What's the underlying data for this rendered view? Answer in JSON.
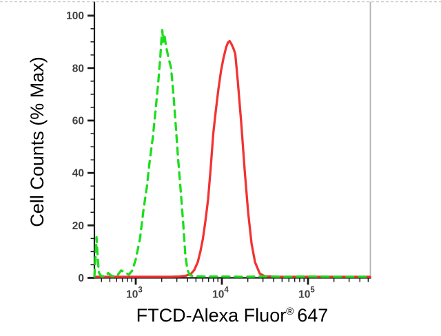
{
  "figure": {
    "background": "#ffffff",
    "x_axis_label": {
      "prefix": "FTCD-Alexa Fluor",
      "registered_mark": "®",
      "suffix": "647"
    },
    "y_axis_label": "Cell Counts (% Max)"
  },
  "chart_data": {
    "type": "line",
    "subtype": "flow-cytometry-histogram-overlay",
    "title": "",
    "xlabel": "FTCD-Alexa Fluor® 647",
    "ylabel": "Cell Counts (% Max)",
    "x_scale": "log10",
    "x_range_log10": [
      2.52,
      5.72
    ],
    "ylim": [
      0,
      100
    ],
    "grid": false,
    "legend": "none",
    "axis_color": "#1a1a1a",
    "tick_label_color": "#3f3f3f",
    "border": {
      "top_style": "dashed",
      "top_color": "#c9c9c9",
      "right_color": "#b3b3b3"
    },
    "x_major_ticks": [
      {
        "base": "10",
        "exponent": "3",
        "log10": 3
      },
      {
        "base": "10",
        "exponent": "4",
        "log10": 4
      },
      {
        "base": "10",
        "exponent": "5",
        "log10": 5
      }
    ],
    "x_minor_ticks_log10": [
      2.602,
      2.699,
      2.778,
      2.845,
      2.903,
      2.954,
      3.301,
      3.477,
      3.602,
      3.699,
      3.778,
      3.845,
      3.903,
      3.954,
      4.301,
      4.477,
      4.602,
      4.699,
      4.778,
      4.845,
      4.903,
      4.954,
      5.301,
      5.477,
      5.602,
      5.699
    ],
    "y_major_ticks": [
      {
        "value": 0,
        "label": "0"
      },
      {
        "value": 20,
        "label": "20"
      },
      {
        "value": 40,
        "label": "40"
      },
      {
        "value": 60,
        "label": "60"
      },
      {
        "value": 80,
        "label": "80"
      },
      {
        "value": 100,
        "label": "100"
      }
    ],
    "y_minor_ticks": [
      5,
      10,
      15,
      25,
      30,
      35,
      45,
      50,
      55,
      65,
      70,
      75,
      85,
      90,
      95
    ],
    "series": [
      {
        "name": "red-solid-curve",
        "color": "#f23232",
        "line_style": "solid",
        "line_width": 3.3,
        "peak_log10x": 4.09,
        "peak_value_x": 12300,
        "peak_pct_max": 90,
        "points_log10x_ypct": [
          [
            2.52,
            0.4
          ],
          [
            2.9,
            0.4
          ],
          [
            3.2,
            0.4
          ],
          [
            3.4,
            0.4
          ],
          [
            3.5,
            0.5
          ],
          [
            3.58,
            0.8
          ],
          [
            3.64,
            1.5
          ],
          [
            3.68,
            3
          ],
          [
            3.72,
            6
          ],
          [
            3.75,
            10
          ],
          [
            3.78,
            15
          ],
          [
            3.81,
            22
          ],
          [
            3.84,
            30
          ],
          [
            3.87,
            42
          ],
          [
            3.9,
            55
          ],
          [
            3.93,
            64
          ],
          [
            3.96,
            72
          ],
          [
            3.99,
            79
          ],
          [
            4.02,
            84
          ],
          [
            4.05,
            88
          ],
          [
            4.07,
            89.7
          ],
          [
            4.09,
            90.3
          ],
          [
            4.11,
            89.2
          ],
          [
            4.13,
            87.8
          ],
          [
            4.155,
            85.5
          ],
          [
            4.185,
            75
          ],
          [
            4.225,
            59
          ],
          [
            4.265,
            41
          ],
          [
            4.305,
            25
          ],
          [
            4.345,
            13
          ],
          [
            4.385,
            6
          ],
          [
            4.44,
            1.6
          ],
          [
            4.5,
            0.6
          ],
          [
            4.65,
            0.4
          ],
          [
            4.9,
            0.4
          ],
          [
            5.2,
            0.4
          ],
          [
            5.5,
            0.4
          ],
          [
            5.72,
            0.4
          ]
        ]
      },
      {
        "name": "green-dashed-curve",
        "color": "#1ddd1d",
        "line_style": "dashed",
        "dash_pattern": [
          10,
          8
        ],
        "line_width": 3.3,
        "peak_log10x": 3.31,
        "peak_value_x": 2040,
        "peak_pct_max": 94.5,
        "points_log10x_ypct": [
          [
            2.52,
            0.5
          ],
          [
            2.532,
            7
          ],
          [
            2.545,
            15.5
          ],
          [
            2.558,
            8
          ],
          [
            2.572,
            2
          ],
          [
            2.6,
            0.6
          ],
          [
            2.65,
            0.6
          ],
          [
            2.68,
            1.8
          ],
          [
            2.72,
            0.7
          ],
          [
            2.78,
            0.6
          ],
          [
            2.83,
            2.8
          ],
          [
            2.88,
            2.0
          ],
          [
            2.92,
            1.2
          ],
          [
            2.96,
            2.8
          ],
          [
            3.0,
            7
          ],
          [
            3.05,
            15
          ],
          [
            3.09,
            26
          ],
          [
            3.13,
            35
          ],
          [
            3.16,
            44
          ],
          [
            3.2,
            54
          ],
          [
            3.23,
            64
          ],
          [
            3.26,
            74
          ],
          [
            3.285,
            84
          ],
          [
            3.298,
            91
          ],
          [
            3.308,
            94.5
          ],
          [
            3.318,
            90
          ],
          [
            3.332,
            93
          ],
          [
            3.35,
            88.5
          ],
          [
            3.38,
            84
          ],
          [
            3.41,
            80
          ],
          [
            3.44,
            69
          ],
          [
            3.465,
            58
          ],
          [
            3.49,
            46
          ],
          [
            3.52,
            34
          ],
          [
            3.55,
            21
          ],
          [
            3.575,
            9
          ],
          [
            3.6,
            3
          ],
          [
            3.63,
            1
          ],
          [
            3.68,
            0.6
          ],
          [
            3.8,
            0.5
          ],
          [
            4.0,
            0.5
          ],
          [
            4.25,
            0.4
          ],
          [
            4.5,
            0.5
          ],
          [
            4.75,
            0.4
          ],
          [
            5.0,
            0.5
          ],
          [
            5.3,
            0.4
          ],
          [
            5.6,
            0.4
          ],
          [
            5.72,
            0.4
          ]
        ]
      }
    ]
  }
}
